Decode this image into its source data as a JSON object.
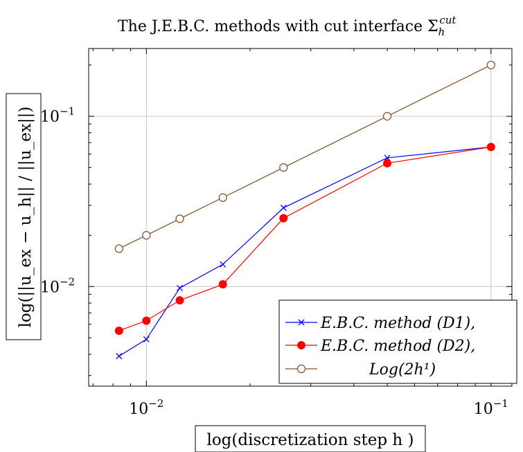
{
  "chart_data": {
    "type": "line",
    "title": "The J.E.B.C. methods with cut interface Σ",
    "title_sub": "h",
    "title_sup": "cut",
    "xlabel": "log(discretization step h )",
    "ylabel": "log(||u_ex − u_h|| / ||u_ex||)",
    "xscale": "log",
    "yscale": "log",
    "xlim": [
      0.0068,
      0.115
    ],
    "ylim": [
      0.0026,
      0.25
    ],
    "grid": true,
    "legend_position": "bottom-right",
    "x_ticks": [
      {
        "value": 0.01,
        "base": "10",
        "exp": "−2"
      },
      {
        "value": 0.1,
        "base": "10",
        "exp": "−1"
      }
    ],
    "y_ticks": [
      {
        "value": 0.01,
        "base": "10",
        "exp": "−2"
      },
      {
        "value": 0.1,
        "base": "10",
        "exp": "−1"
      }
    ],
    "series": [
      {
        "name": "E.B.C. method (D1),",
        "color": "#0000ff",
        "marker": "x",
        "x": [
          0.00833,
          0.01,
          0.0125,
          0.01667,
          0.025,
          0.05,
          0.1
        ],
        "y": [
          0.0039,
          0.0049,
          0.0098,
          0.0135,
          0.029,
          0.057,
          0.066
        ]
      },
      {
        "name": "E.B.C. method (D2),",
        "color": "#ff0000",
        "marker": "filled-circle",
        "x": [
          0.00833,
          0.01,
          0.0125,
          0.01667,
          0.025,
          0.05,
          0.1
        ],
        "y": [
          0.0055,
          0.0063,
          0.0083,
          0.0103,
          0.0252,
          0.053,
          0.066
        ]
      },
      {
        "name": "Log(2h¹)",
        "color": "#7f4f25",
        "marker": "open-circle",
        "x": [
          0.00833,
          0.01,
          0.0125,
          0.01667,
          0.025,
          0.05,
          0.1
        ],
        "y": [
          0.0167,
          0.02,
          0.025,
          0.0333,
          0.05,
          0.1,
          0.2
        ]
      }
    ]
  }
}
